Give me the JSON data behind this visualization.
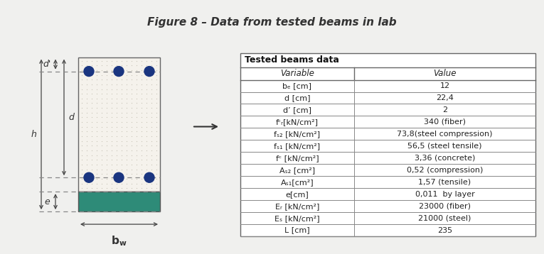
{
  "title": "Figure 8 – Data from tested beams in lab",
  "title_bg": "#F5B800",
  "bg_color": "#F0F0EE",
  "table_title": "Tested beams data",
  "table_headers": [
    "Variable",
    "Value"
  ],
  "table_rows": [
    [
      "bₑ [cm]",
      "12"
    ],
    [
      "d [cm]",
      "22,4"
    ],
    [
      "d’ [cm]",
      "2"
    ],
    [
      "fᶜᵣ[kN/cm²]",
      "340 (fiber)"
    ],
    [
      "fₛ₂ [kN/cm²]",
      "73,8(steel compression)"
    ],
    [
      "fₛ₁ [kN/cm²]",
      "56,5 (steel tensile)"
    ],
    [
      "fᶜ [kN/cm²]",
      "3,36 (concrete)"
    ],
    [
      "Aₛ₂ [cm²]",
      "0,52 (compression)"
    ],
    [
      "Aₛ₁[cm²]",
      "1,57 (tensile)"
    ],
    [
      "e[cm]",
      "0,011  by layer"
    ],
    [
      "Eᵣ [kN/cm²]",
      "23000 (fiber)"
    ],
    [
      "Eₛ [kN/cm²]",
      "21000 (steel)"
    ],
    [
      "L [cm]",
      "235"
    ]
  ],
  "beam_dot_color": "#1A3580",
  "teal_color": "#2E8B78",
  "dim_color": "#444444",
  "title_fontsize": 11,
  "table_var_labels": [
    "bₑ [cm]",
    "d [cm]",
    "d’ [cm]",
    "fᶜᵣ[kN/cm²]",
    "fₛ₂ [kN/cm²]",
    "fₛ₁ [kN/cm²]",
    "fᶜ [kN/cm²]",
    "Aₛ₂ [cm²]",
    "Aₛ₁[cm²]",
    "e[cm]",
    "Eᵣ [kN/cm²]",
    "Eₛ [kN/cm²]",
    "L [cm]"
  ],
  "table_val_labels": [
    "12",
    "22,4",
    "2",
    "340 (fiber)",
    "73,8(steel compression)",
    "56,5 (steel tensile)",
    "3,36 (concrete)",
    "0,52 (compression)",
    "1,57 (tensile)",
    "0,011  by layer",
    "23000 (fiber)",
    "21000 (steel)",
    "235"
  ]
}
